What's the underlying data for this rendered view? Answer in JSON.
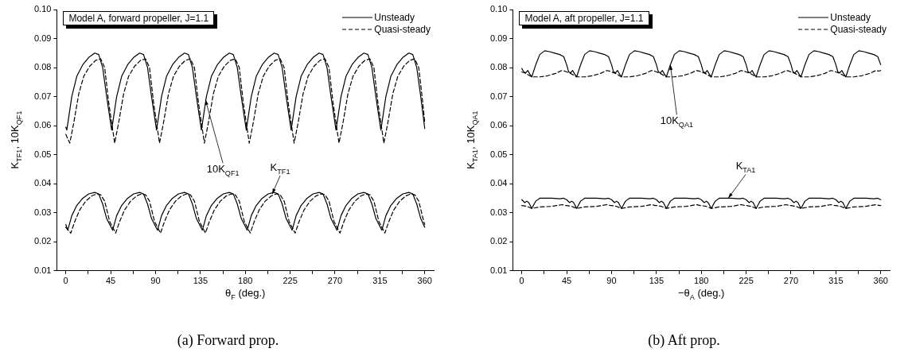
{
  "chart_data": [
    {
      "type": "line",
      "title": "Model A, forward propeller, J=1.1",
      "xlabel": "θ$_{F}$ (deg.)",
      "ylabel": "K$_{TF1}$, 10K$_{QF1}$",
      "legend": "top right",
      "marker": "none",
      "grid": false,
      "xlim": [
        -9,
        369
      ],
      "xticks": [
        0,
        {
          "value": 22.5,
          "label": null
        },
        45,
        {
          "value": 67.5,
          "label": null
        },
        90,
        {
          "value": 112.5,
          "label": null
        },
        135,
        {
          "value": 157.5,
          "label": null
        },
        180,
        {
          "value": 202.5,
          "label": null
        },
        225,
        {
          "value": 247.5,
          "label": null
        },
        270,
        {
          "value": 292.5,
          "label": null
        },
        315,
        {
          "value": 337.5,
          "label": null
        },
        360
      ],
      "ylim": [
        0.01,
        0.1
      ],
      "yticks": [
        {
          "value": 0.01,
          "label": "0.01"
        },
        {
          "value": 0.02,
          "label": "0.02"
        },
        {
          "value": 0.03,
          "label": "0.03"
        },
        {
          "value": 0.04,
          "label": "0.04"
        },
        {
          "value": 0.05,
          "label": "0.05"
        },
        {
          "value": 0.06,
          "label": "0.06"
        },
        {
          "value": 0.07,
          "label": "0.07"
        },
        {
          "value": 0.08,
          "label": "0.08"
        },
        {
          "value": 0.09,
          "label": "0.09"
        },
        {
          "value": 0.1,
          "label": "0.10"
        }
      ],
      "series": [
        {
          "name": "Unsteady",
          "color": "#000000",
          "line_style": "solid",
          "x": [
            0,
            1,
            6,
            11,
            17,
            23,
            29,
            33,
            37,
            41,
            46,
            51,
            56,
            62,
            68,
            74,
            78,
            82,
            86,
            91,
            96,
            101,
            107,
            113,
            119,
            123,
            127,
            131,
            136,
            141,
            146,
            152,
            158,
            164,
            168,
            172,
            176,
            181,
            186,
            191,
            197,
            203,
            209,
            213,
            217,
            221,
            226,
            231,
            236,
            242,
            248,
            254,
            258,
            262,
            266,
            271,
            276,
            281,
            287,
            293,
            299,
            303,
            307,
            311,
            316,
            321,
            326,
            332,
            338,
            344,
            348,
            352,
            356,
            360
          ],
          "values": [
            0.0595,
            0.0585,
            0.07,
            0.077,
            0.081,
            0.0835,
            0.085,
            0.0845,
            0.08,
            0.07,
            0.0585,
            0.07,
            0.077,
            0.081,
            0.0835,
            0.085,
            0.0845,
            0.08,
            0.07,
            0.0585,
            0.07,
            0.077,
            0.081,
            0.0835,
            0.085,
            0.0845,
            0.08,
            0.07,
            0.0585,
            0.07,
            0.077,
            0.081,
            0.0835,
            0.085,
            0.0845,
            0.08,
            0.07,
            0.0585,
            0.07,
            0.077,
            0.081,
            0.0835,
            0.085,
            0.0845,
            0.08,
            0.07,
            0.0585,
            0.07,
            0.077,
            0.081,
            0.0835,
            0.085,
            0.0845,
            0.08,
            0.07,
            0.0585,
            0.07,
            0.077,
            0.081,
            0.0835,
            0.085,
            0.0845,
            0.08,
            0.07,
            0.0585,
            0.07,
            0.077,
            0.081,
            0.0835,
            0.085,
            0.0845,
            0.08,
            0.07,
            0.059
          ]
        },
        {
          "name": "Quasi-steady",
          "color": "#000000",
          "line_style": "dashed",
          "x": [
            0,
            4,
            8,
            13,
            18,
            24,
            30,
            35,
            39,
            43,
            49,
            53,
            58,
            63,
            69,
            75,
            80,
            84,
            88,
            94,
            98,
            103,
            108,
            114,
            120,
            125,
            129,
            133,
            139,
            143,
            148,
            153,
            159,
            165,
            170,
            174,
            178,
            184,
            188,
            193,
            198,
            204,
            210,
            215,
            219,
            223,
            229,
            233,
            238,
            243,
            249,
            255,
            260,
            264,
            268,
            274,
            278,
            283,
            288,
            294,
            300,
            305,
            309,
            313,
            319,
            323,
            328,
            333,
            339,
            345,
            350,
            354,
            358,
            360
          ],
          "values": [
            0.057,
            0.054,
            0.061,
            0.071,
            0.077,
            0.0805,
            0.0825,
            0.083,
            0.08,
            0.068,
            0.054,
            0.061,
            0.071,
            0.077,
            0.0805,
            0.0825,
            0.083,
            0.08,
            0.068,
            0.054,
            0.061,
            0.071,
            0.077,
            0.0805,
            0.0825,
            0.083,
            0.08,
            0.068,
            0.054,
            0.061,
            0.071,
            0.077,
            0.0805,
            0.0825,
            0.083,
            0.08,
            0.068,
            0.054,
            0.061,
            0.071,
            0.077,
            0.0805,
            0.0825,
            0.083,
            0.08,
            0.068,
            0.054,
            0.061,
            0.071,
            0.077,
            0.0805,
            0.0825,
            0.083,
            0.08,
            0.068,
            0.054,
            0.061,
            0.071,
            0.077,
            0.0805,
            0.0825,
            0.083,
            0.08,
            0.068,
            0.054,
            0.061,
            0.071,
            0.077,
            0.0805,
            0.0825,
            0.083,
            0.08,
            0.068,
            0.061
          ]
        },
        {
          "color": "#000000",
          "line_style": "solid",
          "x": [
            0,
            2,
            6,
            11,
            17,
            23,
            29,
            33,
            37,
            41,
            47,
            51,
            56,
            62,
            68,
            74,
            78,
            82,
            86,
            92,
            96,
            101,
            107,
            113,
            119,
            123,
            127,
            131,
            137,
            141,
            146,
            152,
            158,
            164,
            168,
            172,
            176,
            182,
            186,
            191,
            197,
            203,
            209,
            213,
            217,
            221,
            227,
            231,
            236,
            242,
            248,
            254,
            258,
            262,
            266,
            272,
            276,
            281,
            287,
            293,
            299,
            303,
            307,
            311,
            317,
            321,
            326,
            332,
            338,
            344,
            348,
            352,
            356,
            360
          ],
          "values": [
            0.026,
            0.024,
            0.029,
            0.0325,
            0.035,
            0.0365,
            0.037,
            0.0365,
            0.033,
            0.028,
            0.024,
            0.029,
            0.0325,
            0.035,
            0.0365,
            0.037,
            0.0365,
            0.033,
            0.028,
            0.024,
            0.029,
            0.0325,
            0.035,
            0.0365,
            0.037,
            0.0365,
            0.033,
            0.028,
            0.024,
            0.029,
            0.0325,
            0.035,
            0.0365,
            0.037,
            0.0365,
            0.033,
            0.028,
            0.024,
            0.029,
            0.0325,
            0.035,
            0.0365,
            0.037,
            0.0365,
            0.033,
            0.028,
            0.024,
            0.029,
            0.0325,
            0.035,
            0.0365,
            0.037,
            0.0365,
            0.033,
            0.028,
            0.024,
            0.029,
            0.0325,
            0.035,
            0.0365,
            0.037,
            0.0365,
            0.033,
            0.028,
            0.024,
            0.029,
            0.0325,
            0.035,
            0.0365,
            0.037,
            0.0365,
            0.033,
            0.028,
            0.025
          ]
        },
        {
          "color": "#000000",
          "line_style": "dashed",
          "x": [
            0,
            5,
            9,
            14,
            20,
            26,
            31,
            35,
            39,
            44,
            50,
            54,
            59,
            65,
            71,
            76,
            80,
            84,
            89,
            95,
            99,
            104,
            110,
            116,
            121,
            125,
            129,
            134,
            140,
            144,
            149,
            155,
            161,
            166,
            170,
            174,
            179,
            185,
            189,
            194,
            200,
            206,
            211,
            215,
            219,
            224,
            230,
            234,
            239,
            245,
            251,
            256,
            260,
            264,
            269,
            275,
            279,
            284,
            290,
            296,
            301,
            305,
            309,
            314,
            320,
            324,
            329,
            335,
            341,
            346,
            350,
            354,
            359,
            360
          ],
          "values": [
            0.025,
            0.023,
            0.027,
            0.031,
            0.034,
            0.0358,
            0.0365,
            0.0362,
            0.034,
            0.027,
            0.023,
            0.027,
            0.031,
            0.034,
            0.0358,
            0.0365,
            0.0362,
            0.034,
            0.027,
            0.023,
            0.027,
            0.031,
            0.034,
            0.0358,
            0.0365,
            0.0362,
            0.034,
            0.027,
            0.023,
            0.027,
            0.031,
            0.034,
            0.0358,
            0.0365,
            0.0362,
            0.034,
            0.027,
            0.023,
            0.027,
            0.031,
            0.034,
            0.0358,
            0.0365,
            0.0362,
            0.034,
            0.027,
            0.023,
            0.027,
            0.031,
            0.034,
            0.0358,
            0.0365,
            0.0362,
            0.034,
            0.027,
            0.023,
            0.027,
            0.031,
            0.034,
            0.0358,
            0.0365,
            0.0362,
            0.034,
            0.027,
            0.023,
            0.027,
            0.031,
            0.034,
            0.0358,
            0.0365,
            0.0362,
            0.034,
            0.027,
            0.026
          ]
        }
      ],
      "annotations": [
        {
          "text": "10K$_{QF1}$",
          "x": 140,
          "y": 0.069
        },
        {
          "text": "K$_{TF1}$",
          "x": 207,
          "y": 0.0365
        },
        "(a) Forward prop."
      ]
    },
    {
      "type": "line",
      "title": "Model A, aft propeller, J=1.1",
      "xlabel": "−θ$_{A}$ (deg.)",
      "ylabel": "K$_{TA1}$, 10K$_{QA1}$",
      "legend": "top right",
      "marker": "none",
      "grid": false,
      "xlim": [
        -9,
        369
      ],
      "xticks": [
        0,
        {
          "value": 22.5,
          "label": null
        },
        45,
        {
          "value": 67.5,
          "label": null
        },
        90,
        {
          "value": 112.5,
          "label": null
        },
        135,
        {
          "value": 157.5,
          "label": null
        },
        180,
        {
          "value": 202.5,
          "label": null
        },
        225,
        {
          "value": 247.5,
          "label": null
        },
        270,
        {
          "value": 292.5,
          "label": null
        },
        315,
        {
          "value": 337.5,
          "label": null
        },
        360
      ],
      "ylim": [
        0.01,
        0.1
      ],
      "yticks": [
        {
          "value": 0.01,
          "label": "0.01"
        },
        {
          "value": 0.02,
          "label": "0.02"
        },
        {
          "value": 0.03,
          "label": "0.03"
        },
        {
          "value": 0.04,
          "label": "0.04"
        },
        {
          "value": 0.05,
          "label": "0.05"
        },
        {
          "value": 0.06,
          "label": "0.06"
        },
        {
          "value": 0.07,
          "label": "0.07"
        },
        {
          "value": 0.08,
          "label": "0.08"
        },
        {
          "value": 0.09,
          "label": "0.09"
        },
        {
          "value": 0.1,
          "label": "0.10"
        }
      ],
      "series": [
        {
          "name": "Unsteady",
          "color": "#000000",
          "line_style": "solid",
          "x": [
            0,
            2,
            4,
            6,
            8,
            10,
            14,
            18,
            23,
            28,
            33,
            38,
            42,
            45,
            47,
            49,
            51,
            53,
            55,
            59,
            63,
            68,
            73,
            78,
            83,
            87,
            90,
            92,
            94,
            96,
            98,
            100,
            104,
            108,
            113,
            118,
            123,
            128,
            132,
            135,
            137,
            139,
            141,
            143,
            145,
            149,
            153,
            158,
            163,
            168,
            173,
            177,
            180,
            182,
            184,
            186,
            188,
            190,
            194,
            198,
            203,
            208,
            213,
            218,
            222,
            225,
            227,
            229,
            231,
            233,
            235,
            239,
            243,
            248,
            253,
            258,
            263,
            267,
            270,
            272,
            274,
            276,
            278,
            280,
            284,
            288,
            293,
            298,
            303,
            308,
            312,
            315,
            317,
            319,
            321,
            323,
            325,
            329,
            333,
            338,
            343,
            348,
            353,
            357,
            360
          ],
          "values": [
            0.0797,
            0.0785,
            0.0782,
            0.079,
            0.0778,
            0.0768,
            0.081,
            0.0845,
            0.0858,
            0.0855,
            0.085,
            0.0845,
            0.0838,
            0.081,
            0.0785,
            0.0782,
            0.079,
            0.0778,
            0.0768,
            0.081,
            0.0845,
            0.0858,
            0.0855,
            0.085,
            0.0845,
            0.0838,
            0.081,
            0.0785,
            0.0782,
            0.079,
            0.0778,
            0.0768,
            0.081,
            0.0845,
            0.0858,
            0.0855,
            0.085,
            0.0845,
            0.0838,
            0.081,
            0.0785,
            0.0782,
            0.079,
            0.0778,
            0.0768,
            0.081,
            0.0845,
            0.0858,
            0.0855,
            0.085,
            0.0845,
            0.0838,
            0.081,
            0.0785,
            0.0782,
            0.079,
            0.0778,
            0.0768,
            0.081,
            0.0845,
            0.0858,
            0.0855,
            0.085,
            0.0845,
            0.0838,
            0.081,
            0.0785,
            0.0782,
            0.079,
            0.0778,
            0.0768,
            0.081,
            0.0845,
            0.0858,
            0.0855,
            0.085,
            0.0845,
            0.0838,
            0.081,
            0.0785,
            0.0782,
            0.079,
            0.0778,
            0.0768,
            0.081,
            0.0845,
            0.0858,
            0.0855,
            0.085,
            0.0845,
            0.0838,
            0.081,
            0.0785,
            0.0782,
            0.079,
            0.0778,
            0.0768,
            0.081,
            0.0845,
            0.0858,
            0.0855,
            0.085,
            0.0845,
            0.0838,
            0.081
          ]
        },
        {
          "name": "Quasi-steady",
          "color": "#000000",
          "line_style": "dashed",
          "x": [
            0,
            4,
            10,
            18,
            26,
            34,
            40,
            43,
            45,
            49,
            55,
            63,
            71,
            79,
            85,
            88,
            90,
            94,
            100,
            108,
            116,
            124,
            130,
            133,
            135,
            139,
            145,
            153,
            161,
            169,
            175,
            178,
            180,
            184,
            190,
            198,
            206,
            214,
            220,
            223,
            225,
            229,
            235,
            243,
            251,
            259,
            265,
            268,
            270,
            274,
            280,
            288,
            296,
            304,
            310,
            313,
            315,
            319,
            325,
            333,
            341,
            349,
            355,
            358,
            360
          ],
          "values": [
            0.0785,
            0.078,
            0.0768,
            0.0768,
            0.0772,
            0.078,
            0.079,
            0.0788,
            0.0785,
            0.078,
            0.0768,
            0.0768,
            0.0772,
            0.078,
            0.079,
            0.0788,
            0.0785,
            0.078,
            0.0768,
            0.0768,
            0.0772,
            0.078,
            0.079,
            0.0788,
            0.0785,
            0.078,
            0.0768,
            0.0768,
            0.0772,
            0.078,
            0.079,
            0.0788,
            0.0785,
            0.078,
            0.0768,
            0.0768,
            0.0772,
            0.078,
            0.079,
            0.0788,
            0.0785,
            0.078,
            0.0768,
            0.0768,
            0.0772,
            0.078,
            0.079,
            0.0788,
            0.0785,
            0.078,
            0.0768,
            0.0768,
            0.0772,
            0.078,
            0.079,
            0.0788,
            0.0785,
            0.078,
            0.0768,
            0.0768,
            0.0772,
            0.078,
            0.079,
            0.0788,
            0.079
          ]
        },
        {
          "color": "#000000",
          "line_style": "solid",
          "x": [
            0,
            3,
            5,
            7,
            10,
            14,
            18,
            30,
            38,
            42,
            45,
            48,
            50,
            52,
            55,
            59,
            63,
            75,
            83,
            87,
            90,
            93,
            95,
            97,
            100,
            104,
            108,
            120,
            128,
            132,
            135,
            138,
            140,
            142,
            145,
            149,
            153,
            165,
            173,
            177,
            180,
            183,
            185,
            187,
            190,
            194,
            198,
            210,
            218,
            222,
            225,
            228,
            230,
            232,
            235,
            239,
            243,
            255,
            263,
            267,
            270,
            273,
            275,
            277,
            280,
            284,
            288,
            300,
            308,
            312,
            315,
            318,
            320,
            322,
            325,
            329,
            333,
            345,
            353,
            357,
            360
          ],
          "values": [
            0.0345,
            0.0335,
            0.034,
            0.0335,
            0.0315,
            0.034,
            0.035,
            0.035,
            0.0348,
            0.035,
            0.0345,
            0.0335,
            0.034,
            0.0335,
            0.0315,
            0.034,
            0.035,
            0.035,
            0.0348,
            0.035,
            0.0345,
            0.0335,
            0.034,
            0.0335,
            0.0315,
            0.034,
            0.035,
            0.035,
            0.0348,
            0.035,
            0.0345,
            0.0335,
            0.034,
            0.0335,
            0.0315,
            0.034,
            0.035,
            0.035,
            0.0348,
            0.035,
            0.0345,
            0.0335,
            0.034,
            0.0335,
            0.0315,
            0.034,
            0.035,
            0.035,
            0.0348,
            0.035,
            0.0345,
            0.0335,
            0.034,
            0.0335,
            0.0315,
            0.034,
            0.035,
            0.035,
            0.0348,
            0.035,
            0.0345,
            0.0335,
            0.034,
            0.0335,
            0.0315,
            0.034,
            0.035,
            0.035,
            0.0348,
            0.035,
            0.0345,
            0.0335,
            0.034,
            0.0335,
            0.0315,
            0.034,
            0.035,
            0.035,
            0.0348,
            0.035,
            0.0345
          ]
        },
        {
          "color": "#000000",
          "line_style": "dashed",
          "x": [
            0,
            5,
            10,
            18,
            30,
            40,
            44,
            45,
            50,
            55,
            63,
            75,
            85,
            89,
            90,
            95,
            100,
            108,
            120,
            130,
            134,
            135,
            140,
            145,
            153,
            165,
            175,
            179,
            180,
            185,
            190,
            198,
            210,
            220,
            224,
            225,
            230,
            235,
            243,
            255,
            265,
            269,
            270,
            275,
            280,
            288,
            300,
            310,
            314,
            315,
            320,
            325,
            333,
            345,
            355,
            359,
            360
          ],
          "values": [
            0.0325,
            0.0322,
            0.0315,
            0.032,
            0.0322,
            0.0328,
            0.0325,
            0.0325,
            0.0322,
            0.0315,
            0.032,
            0.0322,
            0.0328,
            0.0325,
            0.0325,
            0.0322,
            0.0315,
            0.032,
            0.0322,
            0.0328,
            0.0325,
            0.0325,
            0.0322,
            0.0315,
            0.032,
            0.0322,
            0.0328,
            0.0325,
            0.0325,
            0.0322,
            0.0315,
            0.032,
            0.0322,
            0.0328,
            0.0325,
            0.0325,
            0.0322,
            0.0315,
            0.032,
            0.0322,
            0.0328,
            0.0325,
            0.0325,
            0.0322,
            0.0315,
            0.032,
            0.0322,
            0.0328,
            0.0325,
            0.0325,
            0.0322,
            0.0315,
            0.032,
            0.0322,
            0.0328,
            0.0325,
            0.0325
          ]
        }
      ],
      "annotations": [
        {
          "text": "10K$_{QA1}$",
          "x": 149,
          "y": 0.081
        },
        {
          "text": "K$_{TA1}$",
          "x": 207,
          "y": 0.035
        },
        "(b) Aft prop."
      ]
    }
  ]
}
